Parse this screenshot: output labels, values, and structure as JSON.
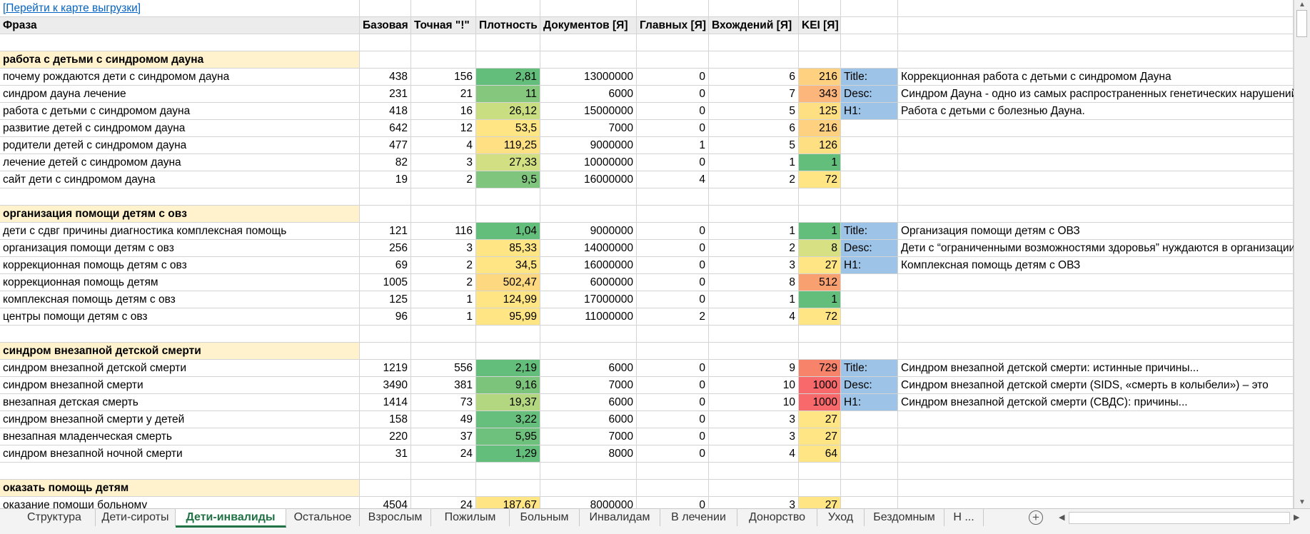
{
  "link_text": "[Перейти к карте выгрузки]",
  "headers": [
    "Фраза",
    "Базовая",
    "Точная \"!\"",
    "Плотность",
    "Документов [Я]",
    "Главных [Я]",
    "Вхождений [Я]",
    "KEI [Я]"
  ],
  "colors": {
    "group_bg": "#fff2cc",
    "meta_label_bg": "#9dc3e6",
    "header_bg": "#ececec",
    "link": "#0563c1",
    "active_tab": "#217346"
  },
  "groups": [
    {
      "title": "работа с детьми с синдромом дауна",
      "rows": [
        {
          "phrase": "почему рождаются дети с синдромом дауна",
          "base": "438",
          "exact": "156",
          "density": "2,81",
          "density_color": "#63be7b",
          "docs": "13000000",
          "main": "0",
          "occ": "6",
          "kei": "216",
          "kei_color": "#fdd17f"
        },
        {
          "phrase": "синдром дауна лечение",
          "base": "231",
          "exact": "21",
          "density": "11",
          "density_color": "#84c77d",
          "docs": "6000",
          "main": "0",
          "occ": "7",
          "kei": "343",
          "kei_color": "#fcb57a"
        },
        {
          "phrase": "работа с детьми с синдромом дауна",
          "base": "418",
          "exact": "16",
          "density": "26,12",
          "density_color": "#c9dd81",
          "docs": "15000000",
          "main": "0",
          "occ": "5",
          "kei": "125",
          "kei_color": "#fedf81"
        },
        {
          "phrase": "развитие детей с синдромом дауна",
          "base": "642",
          "exact": "12",
          "density": "53,5",
          "density_color": "#ffe584",
          "docs": "7000",
          "main": "0",
          "occ": "6",
          "kei": "216",
          "kei_color": "#fdd17f"
        },
        {
          "phrase": "родители детей с синдромом дауна",
          "base": "477",
          "exact": "4",
          "density": "119,25",
          "density_color": "#ffe183",
          "docs": "9000000",
          "main": "1",
          "occ": "5",
          "kei": "126",
          "kei_color": "#fedf81"
        },
        {
          "phrase": "лечение детей с синдромом дауна",
          "base": "82",
          "exact": "3",
          "density": "27,33",
          "density_color": "#d2df82",
          "docs": "10000000",
          "main": "0",
          "occ": "1",
          "kei": "1",
          "kei_color": "#63be7b"
        },
        {
          "phrase": "сайт дети с синдромом дауна",
          "base": "19",
          "exact": "2",
          "density": "9,5",
          "density_color": "#7fc57d",
          "docs": "16000000",
          "main": "4",
          "occ": "2",
          "kei": "72",
          "kei_color": "#ffe584"
        }
      ],
      "meta": [
        {
          "label": "Title:",
          "text": "Коррекционная работа с детьми с синдромом Дауна"
        },
        {
          "label": "Desc:",
          "text": "Синдром Дауна - одно из самых распространенных генетических нарушений"
        },
        {
          "label": "H1:",
          "text": "Работа с детьми с болезнью Дауна."
        }
      ]
    },
    {
      "title": "организация помощи детям с овз",
      "rows": [
        {
          "phrase": "дети с сдвг причины диагностика комплексная помощь",
          "base": "121",
          "exact": "116",
          "density": "1,04",
          "density_color": "#63be7b",
          "docs": "9000000",
          "main": "0",
          "occ": "1",
          "kei": "1",
          "kei_color": "#63be7b"
        },
        {
          "phrase": "организация помощи детям с овз",
          "base": "256",
          "exact": "3",
          "density": "85,33",
          "density_color": "#ffe584",
          "docs": "14000000",
          "main": "0",
          "occ": "2",
          "kei": "8",
          "kei_color": "#d7e082"
        },
        {
          "phrase": "коррекционная помощь детям с овз",
          "base": "69",
          "exact": "2",
          "density": "34,5",
          "density_color": "#ffe584",
          "docs": "16000000",
          "main": "0",
          "occ": "3",
          "kei": "27",
          "kei_color": "#ffe584"
        },
        {
          "phrase": "коррекционная помощь детям",
          "base": "1005",
          "exact": "2",
          "density": "502,47",
          "density_color": "#fed880",
          "docs": "6000000",
          "main": "0",
          "occ": "8",
          "kei": "512",
          "kei_color": "#f8a06f"
        },
        {
          "phrase": "комплексная помощь детям с овз",
          "base": "125",
          "exact": "1",
          "density": "124,99",
          "density_color": "#ffe584",
          "docs": "17000000",
          "main": "0",
          "occ": "1",
          "kei": "1",
          "kei_color": "#63be7b"
        },
        {
          "phrase": "центры помощи детям с овз",
          "base": "96",
          "exact": "1",
          "density": "95,99",
          "density_color": "#ffe584",
          "docs": "11000000",
          "main": "2",
          "occ": "4",
          "kei": "72",
          "kei_color": "#ffe584"
        }
      ],
      "meta": [
        {
          "label": "Title:",
          "text": "Организация помощи детям с ОВЗ"
        },
        {
          "label": "Desc:",
          "text": "Дети с “ограниченными возможностями здоровья” нуждаются в организации"
        },
        {
          "label": "H1:",
          "text": "Комплексная помощь детям с ОВЗ"
        }
      ]
    },
    {
      "title": "синдром внезапной детской смерти",
      "rows": [
        {
          "phrase": "синдром внезапной детской смерти",
          "base": "1219",
          "exact": "556",
          "density": "2,19",
          "density_color": "#63be7b",
          "docs": "6000",
          "main": "0",
          "occ": "9",
          "kei": "729",
          "kei_color": "#f8836b"
        },
        {
          "phrase": "синдром внезапной смерти",
          "base": "3490",
          "exact": "381",
          "density": "9,16",
          "density_color": "#7cc47c",
          "docs": "7000",
          "main": "0",
          "occ": "10",
          "kei": "1000",
          "kei_color": "#f8696b"
        },
        {
          "phrase": "внезапная детская смерть",
          "base": "1414",
          "exact": "73",
          "density": "19,37",
          "density_color": "#b3d680",
          "docs": "6000",
          "main": "0",
          "occ": "10",
          "kei": "1000",
          "kei_color": "#f8696b"
        },
        {
          "phrase": "синдром внезапной смерти у детей",
          "base": "158",
          "exact": "49",
          "density": "3,22",
          "density_color": "#66bf7c",
          "docs": "6000",
          "main": "0",
          "occ": "3",
          "kei": "27",
          "kei_color": "#ffe584"
        },
        {
          "phrase": "внезапная младенческая смерть",
          "base": "220",
          "exact": "37",
          "density": "5,95",
          "density_color": "#6ec17c",
          "docs": "7000",
          "main": "0",
          "occ": "3",
          "kei": "27",
          "kei_color": "#ffe584"
        },
        {
          "phrase": "синдром внезапной ночной смерти",
          "base": "31",
          "exact": "24",
          "density": "1,29",
          "density_color": "#63be7b",
          "docs": "8000",
          "main": "0",
          "occ": "4",
          "kei": "64",
          "kei_color": "#ffe584"
        }
      ],
      "meta": [
        {
          "label": "Title:",
          "text": "Синдром внезапной детской смерти: истинные причины..."
        },
        {
          "label": "Desc:",
          "text": "Синдром внезапной детской смерти (SIDS, «смерть в колыбели») – это"
        },
        {
          "label": "H1:",
          "text": "Синдром внезапной детской смерти (СВДС): причины..."
        }
      ]
    },
    {
      "title": "оказать помощь детям",
      "rows": [
        {
          "phrase": "оказание помощи больному",
          "base": "4504",
          "exact": "24",
          "density": "187,67",
          "density_color": "#ffe583",
          "docs": "8000000",
          "main": "0",
          "occ": "3",
          "kei": "27",
          "kei_color": "#ffe584"
        }
      ],
      "meta": []
    }
  ],
  "sheet_tabs": [
    {
      "label": "Структура",
      "active": false
    },
    {
      "label": "Дети-сироты",
      "active": false
    },
    {
      "label": "Дети-инвалиды",
      "active": true
    },
    {
      "label": "Остальное",
      "active": false
    },
    {
      "label": "Взрослым",
      "active": false
    },
    {
      "label": "Пожилым",
      "active": false
    },
    {
      "label": "Больным",
      "active": false
    },
    {
      "label": "Инвалидам",
      "active": false
    },
    {
      "label": "В лечении",
      "active": false
    },
    {
      "label": "Донорство",
      "active": false
    },
    {
      "label": "Уход",
      "active": false
    },
    {
      "label": "Бездомным",
      "active": false
    },
    {
      "label": "Н ...",
      "active": false
    }
  ],
  "icons": {
    "add_sheet": "plus-circle-icon",
    "scroll_left": "triangle-left-icon",
    "scroll_right": "triangle-right-icon",
    "scroll_up": "triangle-up-icon",
    "scroll_down": "triangle-down-icon"
  }
}
